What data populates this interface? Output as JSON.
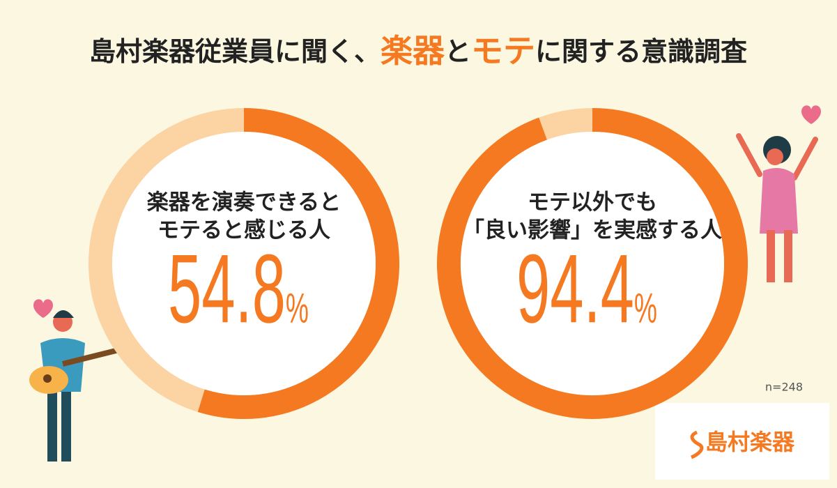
{
  "title": [
    "島村楽器従業員に聞く、",
    "楽器",
    "と",
    "モテ",
    "に関する意識調査"
  ],
  "chart_data": [
    {
      "type": "donut",
      "label": [
        "楽器を演奏できると",
        "モテると感じる人"
      ],
      "values": [
        54.8
      ],
      "value_labels": [
        "54.8%"
      ],
      "ylim": [
        0,
        100
      ],
      "color": "#f47920",
      "track_color": "#fcd3a3"
    },
    {
      "type": "donut",
      "label": [
        "モテ以外でも",
        "「良い影響」を実感する人"
      ],
      "values": [
        94.4
      ],
      "value_labels": [
        "94.4%"
      ],
      "ylim": [
        0,
        100
      ],
      "color": "#f47920",
      "track_color": "#fcd3a3"
    }
  ],
  "note": "n=248",
  "logo": "島村楽器"
}
